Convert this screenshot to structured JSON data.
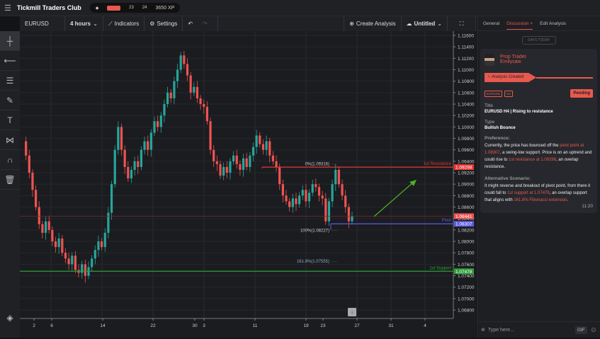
{
  "header": {
    "brand": "Tickmill Traders Club",
    "xp_level": "1",
    "xp_a": "23",
    "xp_b": "24",
    "xp": "3650 XP"
  },
  "toolbar": {
    "symbol": "EURUSD",
    "interval": "4 hours",
    "indicators": "Indicators",
    "settings": "Settings",
    "create": "Create Analysis",
    "saved": "Untitled"
  },
  "left_tools": [
    "crosshair-icon",
    "line-icon",
    "fib-icon",
    "brush-icon",
    "text-icon",
    "pattern-icon",
    "magnet-icon",
    "trash-icon"
  ],
  "panel": {
    "tabs": [
      "General",
      "Discussion",
      "Edit Analysis"
    ],
    "active_tab": "Discussion",
    "days": "DAYS TODAY",
    "role": "Prop Trader",
    "user": "Emilysaw",
    "status_line": "Analysis Created",
    "tags": [
      "EURUSD",
      "H4"
    ],
    "status": "Pending",
    "title_label": "Title",
    "title": "EURUSD H4 | Rising to resistance",
    "type_label": "Type",
    "type": "Bullish Bounce",
    "pref_label": "Preference:",
    "pref": [
      [
        "Currently, the price has bounced off the ",
        0
      ],
      [
        "pivot point at 1.08307",
        1
      ],
      [
        ", a swing-low support. Price is on an uptrend and could rise to ",
        0
      ],
      [
        "1st resistance at 1.09298",
        1
      ],
      [
        ", an overlap resistance.",
        0
      ]
    ],
    "alt_label": "Alternative Scenario:",
    "alt": [
      [
        "It might reverse and breakout of pivot point, from there it could fall to ",
        0
      ],
      [
        "1st support at 1.07478",
        1
      ],
      [
        ", an overlap support that aligns with ",
        0
      ],
      [
        "161.8% Fibonacci extension",
        1
      ],
      [
        ".",
        0
      ]
    ],
    "time": "11:20",
    "placeholder": "Type here...",
    "gif": "GIF"
  },
  "colors": {
    "up": "#26a69a",
    "down": "#ef5350",
    "accent": "#e8594f",
    "resistance": "#e53935",
    "pivot": "#5c5ce0",
    "support": "#2e9e3a",
    "arrow": "#4caf26"
  },
  "chart_data": {
    "type": "candlestick",
    "symbol": "EURUSD",
    "interval": "4 hours",
    "ylim": [
      1.067,
      1.117
    ],
    "yticks": [
      1.116,
      1.114,
      1.112,
      1.11,
      1.108,
      1.106,
      1.104,
      1.102,
      1.1,
      1.098,
      1.096,
      1.094,
      1.092,
      1.09,
      1.088,
      1.086,
      1.084,
      1.082,
      1.08,
      1.078,
      1.076,
      1.074,
      1.072,
      1.07,
      1.068
    ],
    "xticks": [
      "2",
      "6",
      "14",
      "22",
      "30",
      "3",
      "11",
      "19",
      "23",
      "27",
      "31",
      "4"
    ],
    "closes": [
      1.0975,
      1.095,
      1.092,
      1.089,
      1.086,
      1.083,
      1.0815,
      1.0835,
      1.082,
      1.08,
      1.079,
      1.0805,
      1.078,
      1.077,
      1.076,
      1.0775,
      1.075,
      1.0745,
      1.076,
      1.074,
      1.0755,
      1.077,
      1.0785,
      1.08,
      1.079,
      1.0815,
      1.085,
      1.09,
      1.096,
      1.1,
      1.096,
      1.093,
      1.091,
      1.0925,
      1.094,
      1.093,
      1.096,
      1.0975,
      1.096,
      1.099,
      1.101,
      1.1,
      1.102,
      1.104,
      1.106,
      1.105,
      1.108,
      1.11,
      1.1125,
      1.111,
      1.109,
      1.106,
      1.107,
      1.105,
      1.104,
      1.1035,
      1.101,
      1.096,
      1.094,
      1.0935,
      1.0915,
      1.093,
      1.092,
      1.094,
      1.095,
      1.0935,
      1.0925,
      1.0945,
      1.093,
      1.095,
      1.0965,
      1.0985,
      1.097,
      1.096,
      1.0975,
      1.095,
      1.094,
      1.093,
      1.09,
      1.088,
      1.087,
      1.086,
      1.0875,
      1.0865,
      1.088,
      1.089,
      1.087,
      1.0885,
      1.09,
      1.0895,
      1.088,
      1.0875,
      1.0835,
      1.087,
      1.09,
      1.0925,
      1.09,
      1.088,
      1.086,
      1.0835,
      1.0844
    ],
    "levels": [
      {
        "label": "1st Resistance",
        "value": 1.09298
      },
      {
        "label": "Pivot",
        "value": 1.08307
      },
      {
        "label": "1st Support",
        "value": 1.07478
      }
    ],
    "current_price": 1.08441,
    "fib": [
      {
        "label": "0%(1.09316)",
        "value": 1.09316
      },
      {
        "label": "100%(1.08227)",
        "value": 1.08227
      },
      {
        "label": "161.8%(1.07555)",
        "value": 1.07555
      }
    ]
  }
}
